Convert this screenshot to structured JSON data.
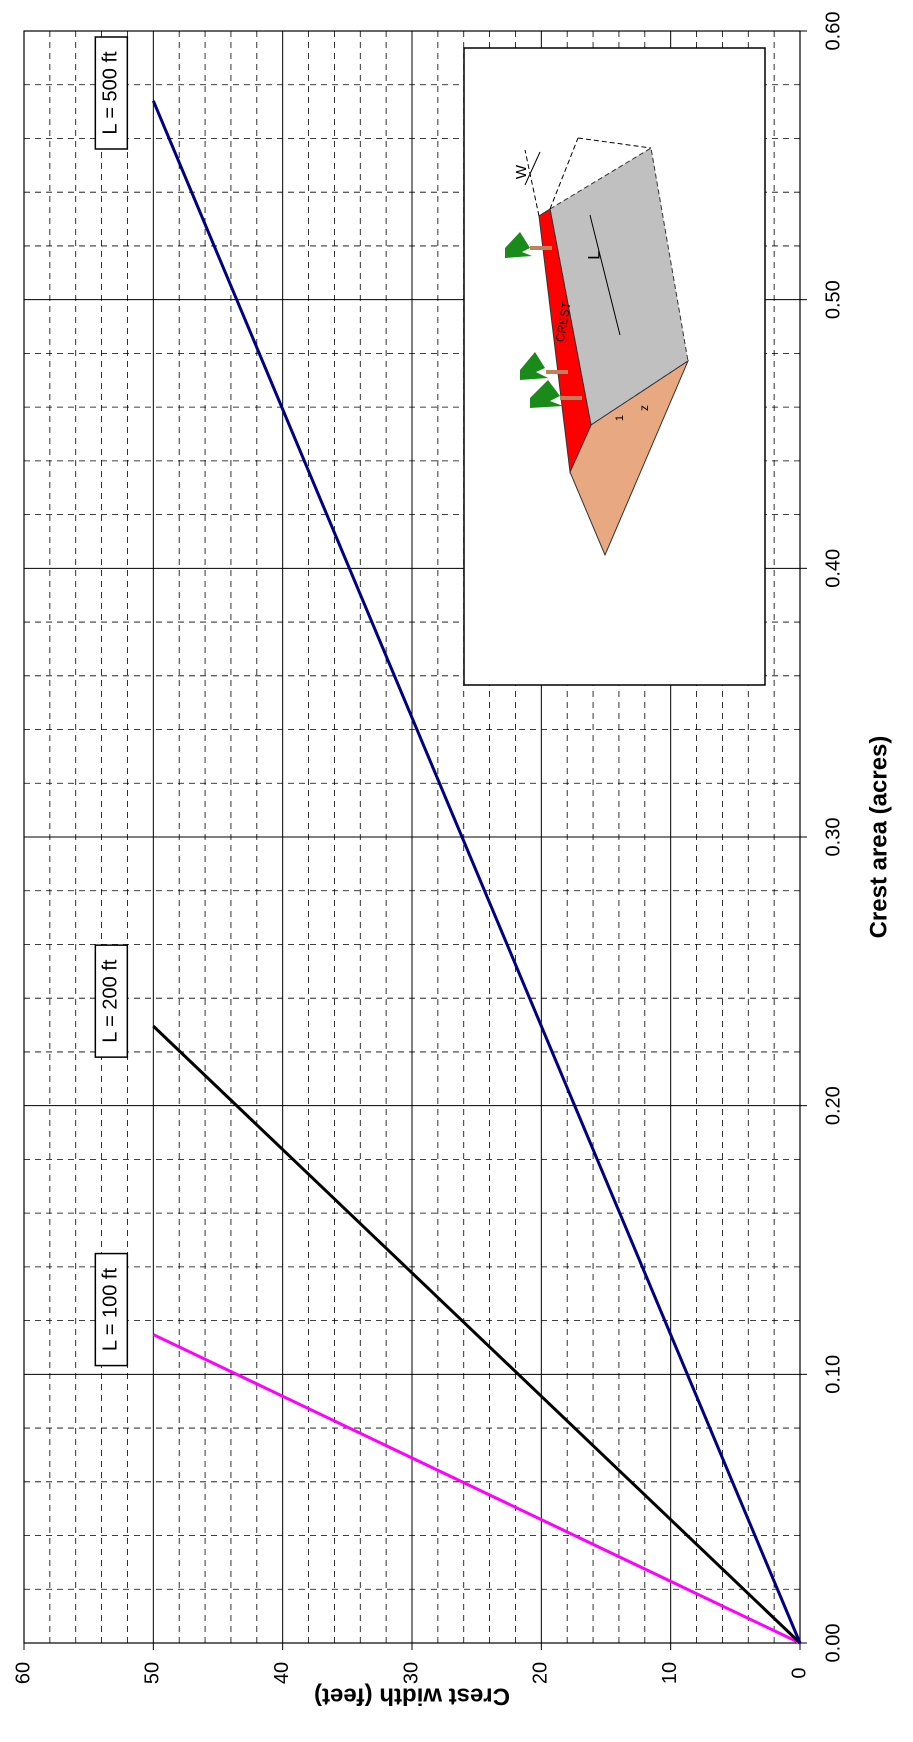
{
  "chart_data": {
    "type": "line",
    "x_label": "Crest area (acres)",
    "y_label": "Crest width (feet)",
    "xlim": [
      0,
      0.6
    ],
    "ylim": [
      0,
      60
    ],
    "xticks": [
      {
        "value": 0,
        "label": "0.00"
      },
      {
        "value": 0.1,
        "label": "0.10"
      },
      {
        "value": 0.2,
        "label": "0.20"
      },
      {
        "value": 0.3,
        "label": "0.30"
      },
      {
        "value": 0.4,
        "label": "0.40"
      },
      {
        "value": 0.5,
        "label": "0.50"
      },
      {
        "value": 0.6,
        "label": "0.60"
      }
    ],
    "yticks": [
      0,
      10,
      20,
      30,
      40,
      50,
      60
    ],
    "grid": true,
    "series": [
      {
        "name": "L = 100 ft",
        "color": "#ff00ff",
        "x": [
          0,
          0.1148
        ],
        "values": [
          0,
          50
        ]
      },
      {
        "name": "L = 200 ft",
        "color": "#000000",
        "x": [
          0,
          0.2296
        ],
        "values": [
          0,
          50
        ]
      },
      {
        "name": "L = 500 ft",
        "color": "#000080",
        "x": [
          0,
          0.574
        ],
        "values": [
          0,
          50
        ]
      }
    ]
  },
  "inset": {
    "labels": {
      "w": "W",
      "l": "L",
      "crest": "CREST",
      "one": "1",
      "z": "z"
    }
  }
}
